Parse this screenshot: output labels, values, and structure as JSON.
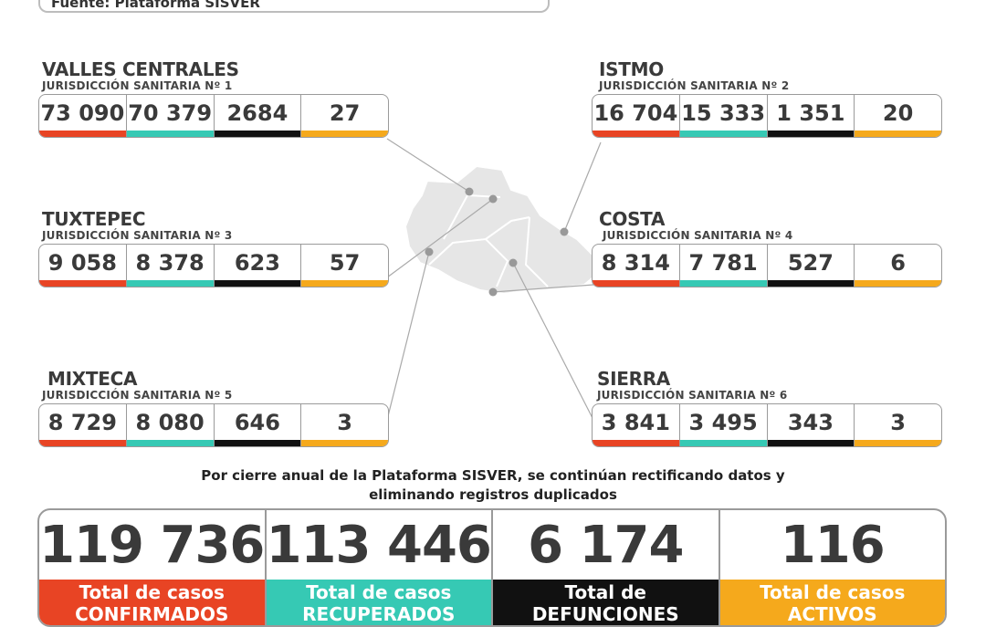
{
  "source": "Fuente: Plataforma SISVER",
  "regions": [
    {
      "name": "VALLES CENTRALES",
      "sub": "JURISDICCIÓN SANITARIA Nº 1",
      "confirmed": "73 090",
      "recovered": "70 379",
      "deaths": "2684",
      "active": "27"
    },
    {
      "name": "ISTMO",
      "sub": "JURISDICCIÓN SANITARIA Nº 2",
      "confirmed": "16 704",
      "recovered": "15 333",
      "deaths": "1 351",
      "active": "20"
    },
    {
      "name": "TUXTEPEC",
      "sub": "JURISDICCIÓN SANITARIA Nº 3",
      "confirmed": "9 058",
      "recovered": "8 378",
      "deaths": "623",
      "active": "57"
    },
    {
      "name": "COSTA",
      "sub": "JURISDICCIÓN SANITARIA Nº 4",
      "confirmed": "8 314",
      "recovered": "7 781",
      "deaths": "527",
      "active": "6"
    },
    {
      "name": "MIXTECA",
      "sub": "JURISDICCIÓN SANITARIA Nº 5",
      "confirmed": "8 729",
      "recovered": "8 080",
      "deaths": "646",
      "active": "3"
    },
    {
      "name": "SIERRA",
      "sub": "JURISDICCIÓN SANITARIA Nº 6",
      "confirmed": "3 841",
      "recovered": "3 495",
      "deaths": "343",
      "active": "3"
    }
  ],
  "notice": {
    "line1": "Por cierre anual de la Plataforma SISVER, se continúan rectificando datos y",
    "line2": "eliminando registros duplicados"
  },
  "totals": [
    {
      "value": "119 736",
      "label_line1": "Total de casos",
      "label_line2": "CONFIRMADOS"
    },
    {
      "value": "113 446",
      "label_line1": "Total de casos",
      "label_line2": "RECUPERADOS"
    },
    {
      "value": "6 174",
      "label_line1": "Total de",
      "label_line2": "DEFUNCIONES"
    },
    {
      "value": "116",
      "label_line1": "Total de casos",
      "label_line2": "ACTIVOS"
    }
  ],
  "colors": {
    "confirmed": "#e84424",
    "recovered": "#36c9b4",
    "deaths": "#111111",
    "active": "#f5a91c",
    "map": "#e6e6e6"
  }
}
